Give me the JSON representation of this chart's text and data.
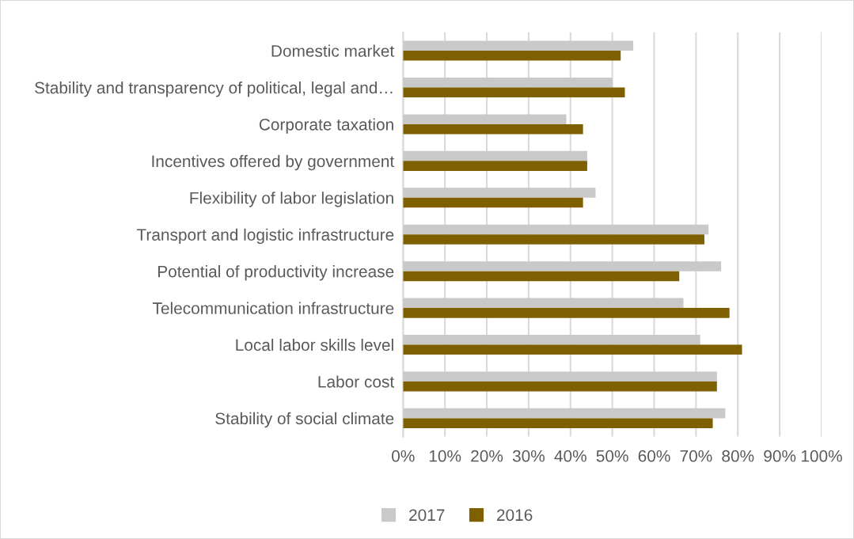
{
  "chart_data": {
    "type": "bar",
    "orientation": "horizontal",
    "categories": [
      "Domestic market",
      "Stability and transparency of political, legal and…",
      "Corporate taxation",
      "Incentives offered by government",
      "Flexibility of labor legislation",
      "Transport and logistic infrastructure",
      "Potential of productivity increase",
      "Telecommunication infrastructure",
      "Local labor skills level",
      "Labor cost",
      "Stability of social climate"
    ],
    "series": [
      {
        "name": "2017",
        "color": "#c9c9c9",
        "values": [
          55,
          50,
          39,
          44,
          46,
          73,
          76,
          67,
          71,
          75,
          77
        ]
      },
      {
        "name": "2016",
        "color": "#7f6000",
        "values": [
          52,
          53,
          43,
          44,
          43,
          72,
          66,
          78,
          81,
          75,
          74
        ]
      }
    ],
    "xlim": [
      0,
      100
    ],
    "xticks": [
      {
        "value": 0,
        "label": "0%"
      },
      {
        "value": 10,
        "label": "10%"
      },
      {
        "value": 20,
        "label": "20%"
      },
      {
        "value": 30,
        "label": "30%"
      },
      {
        "value": 40,
        "label": "40%"
      },
      {
        "value": 50,
        "label": "50%"
      },
      {
        "value": 60,
        "label": "60%"
      },
      {
        "value": 70,
        "label": "70%"
      },
      {
        "value": 80,
        "label": "80%"
      },
      {
        "value": 90,
        "label": "90%"
      },
      {
        "value": 100,
        "label": "100%"
      }
    ],
    "grid": "x",
    "legend": "bottom"
  }
}
